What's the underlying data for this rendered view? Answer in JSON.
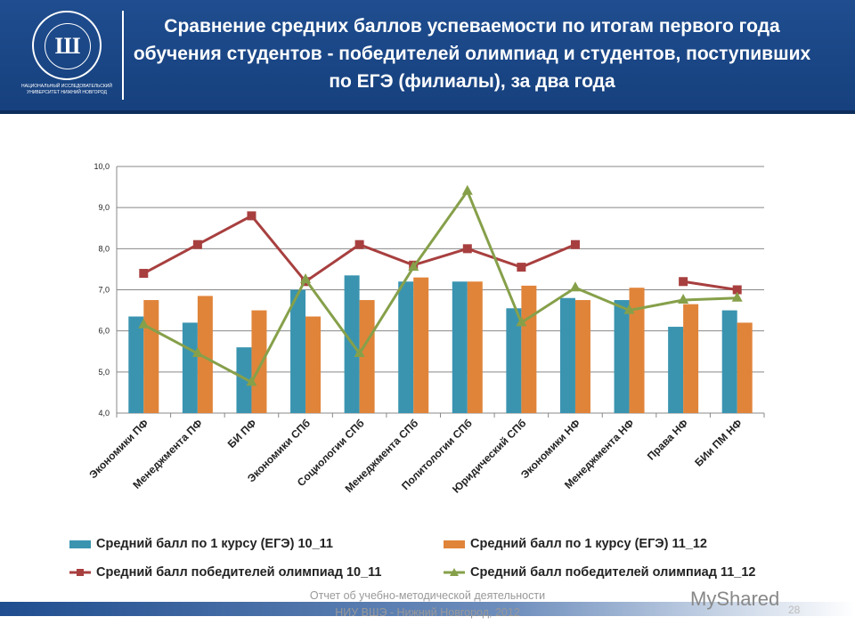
{
  "header": {
    "title": "Сравнение средних баллов успеваемости по итогам первого года обучения студентов - победителей олимпиад и студентов, поступивших по ЕГЭ (филиалы), за два года",
    "logo_text": "НАЦИОНАЛЬНЫЙ ИССЛЕДОВАТЕЛЬСКИЙ УНИВЕРСИТЕТ НИЖНИЙ НОВГОРОД"
  },
  "footer": {
    "text": "Отчет об учебно-методической деятельности НИУ ВШЭ - Нижний Новгород, 2012",
    "page": "28",
    "watermark": "MyShared"
  },
  "chart_data": {
    "type": "bar+line",
    "ylim": [
      4,
      10
    ],
    "yticks": [
      "4,0",
      "5,0",
      "6,0",
      "7,0",
      "8,0",
      "9,0",
      "10,0"
    ],
    "grid": true,
    "legend_placement": "bottom",
    "categories": [
      "Экономики ПФ",
      "Менеджмента ПФ",
      "БИ ПФ",
      "Экономики СПб",
      "Социологии СПб",
      "Менеджмента СПб",
      "Политологии СПб",
      "Юридический СПб",
      "Экономики НФ",
      "Менеджмента НФ",
      "Права НФ",
      "БИи ПМ НФ"
    ],
    "series": [
      {
        "name": "Средний балл по 1 курсу (ЕГЭ) 10_11",
        "kind": "bar",
        "color": "#3a94b0",
        "values": [
          6.35,
          6.2,
          5.6,
          7.0,
          7.35,
          7.2,
          7.2,
          6.55,
          6.8,
          6.75,
          6.1,
          6.5
        ]
      },
      {
        "name": "Средний балл по 1 курсу (ЕГЭ) 11_12",
        "kind": "bar",
        "color": "#e0843a",
        "values": [
          6.75,
          6.85,
          6.5,
          6.35,
          6.75,
          7.3,
          7.2,
          7.1,
          6.75,
          7.05,
          6.65,
          6.2
        ]
      },
      {
        "name": "Средний балл победителей олимпиад 10_11",
        "kind": "line",
        "marker": "square",
        "color": "#a83f3f",
        "values": [
          7.4,
          8.1,
          8.8,
          7.2,
          8.1,
          7.6,
          8.0,
          7.55,
          8.1,
          null,
          7.2,
          7.0
        ]
      },
      {
        "name": "Средний балл победителей олимпиад 11_12",
        "kind": "line",
        "marker": "triangle",
        "color": "#86a04a",
        "values": [
          6.15,
          5.45,
          4.75,
          7.25,
          5.45,
          7.55,
          9.4,
          6.2,
          7.05,
          6.5,
          6.75,
          6.8
        ]
      }
    ]
  }
}
